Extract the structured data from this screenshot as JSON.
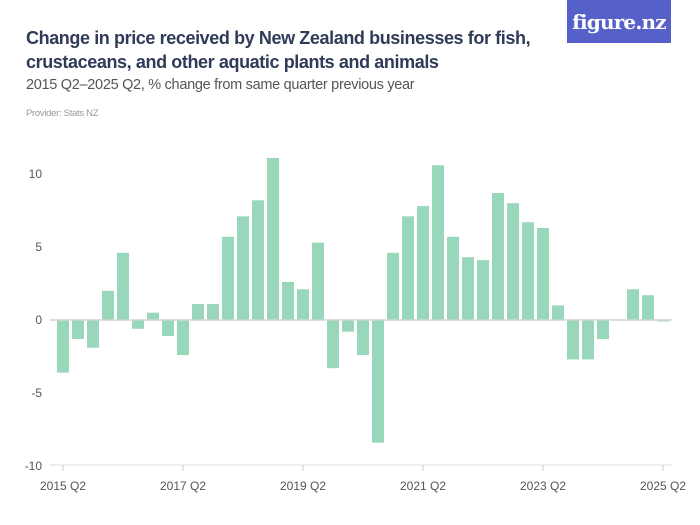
{
  "header": {
    "title": "Change in price received by New Zealand businesses for fish, crustaceans, and other aquatic plants and animals",
    "subtitle": "2015 Q2–2025 Q2, % change from same quarter previous year",
    "provider": "Provider: Stats NZ",
    "logo": "figure.nz"
  },
  "colors": {
    "bar": "#98d7b9",
    "title": "#2f3b57",
    "logo_bg": "#5560c8"
  },
  "chart_data": {
    "type": "bar",
    "title": "Change in price received by New Zealand businesses for fish, crustaceans, and other aquatic plants and animals",
    "xlabel": "",
    "ylabel": "",
    "ylim": [
      -10,
      11.5
    ],
    "grid": false,
    "yticks": [
      -10,
      -5,
      0,
      5,
      10
    ],
    "ytick_labels": [
      "-10",
      "-5",
      "0",
      "5",
      "10"
    ],
    "xtick_labels": [
      "2015 Q2",
      "2017 Q2",
      "2019 Q2",
      "2021 Q2",
      "2023 Q2",
      "2025 Q2"
    ],
    "categories": [
      "2015 Q2",
      "2015 Q3",
      "2015 Q4",
      "2016 Q1",
      "2016 Q2",
      "2016 Q3",
      "2016 Q4",
      "2017 Q1",
      "2017 Q2",
      "2017 Q3",
      "2017 Q4",
      "2018 Q1",
      "2018 Q2",
      "2018 Q3",
      "2018 Q4",
      "2019 Q1",
      "2019 Q2",
      "2019 Q3",
      "2019 Q4",
      "2020 Q1",
      "2020 Q2",
      "2020 Q3",
      "2020 Q4",
      "2021 Q1",
      "2021 Q2",
      "2021 Q3",
      "2021 Q4",
      "2022 Q1",
      "2022 Q2",
      "2022 Q3",
      "2022 Q4",
      "2023 Q1",
      "2023 Q2",
      "2023 Q3",
      "2023 Q4",
      "2024 Q1",
      "2024 Q2",
      "2024 Q3",
      "2024 Q4",
      "2025 Q1",
      "2025 Q2"
    ],
    "values": [
      -3.6,
      -1.3,
      -1.9,
      2.0,
      4.6,
      -0.6,
      0.5,
      -1.1,
      -2.4,
      1.1,
      1.1,
      5.7,
      7.1,
      8.2,
      11.1,
      2.6,
      2.1,
      5.3,
      -3.3,
      -0.8,
      -2.4,
      -8.4,
      4.6,
      7.1,
      7.8,
      10.6,
      5.7,
      4.3,
      4.1,
      8.7,
      8.0,
      6.7,
      6.3,
      1.0,
      -2.7,
      -2.7,
      -1.3,
      0.0,
      2.1,
      1.7,
      -0.1
    ]
  }
}
